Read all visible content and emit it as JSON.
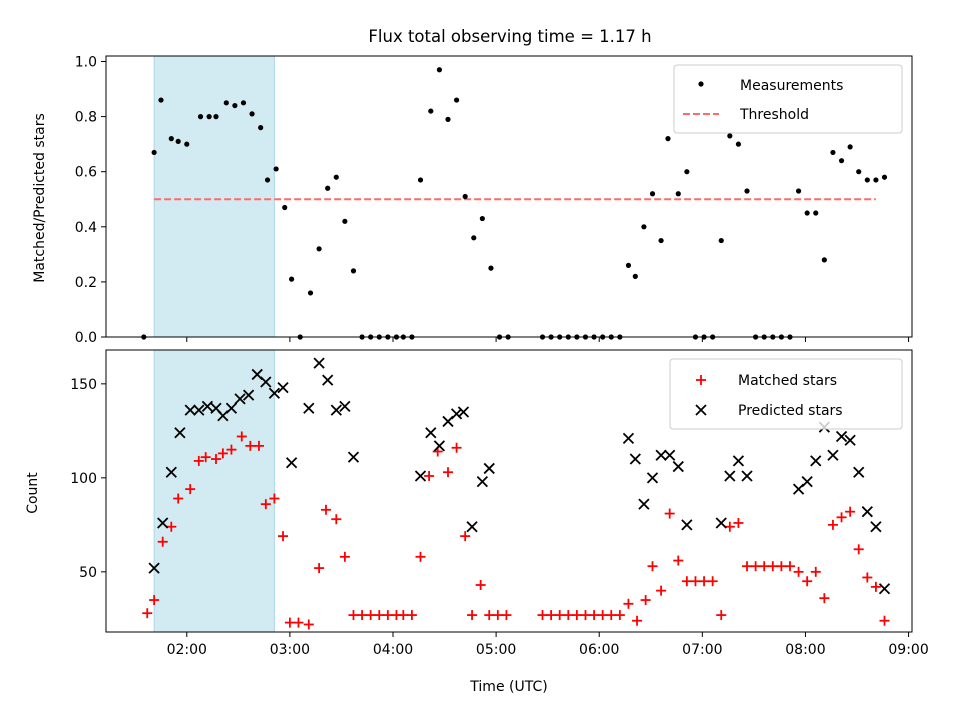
{
  "title": "Flux total observing time = 1.17 h",
  "colors": {
    "shade": "#add8e6",
    "measurement": "#000000",
    "threshold": "#ff6b6b",
    "matched": "#ff0000",
    "predicted": "#000000"
  },
  "chart_data": [
    {
      "type": "scatter",
      "ylabel": "Matched/Predicted stars",
      "ylim": [
        0,
        1.0
      ],
      "yticks": [
        "0.0",
        "0.2",
        "0.4",
        "0.6",
        "0.8",
        "1.0"
      ],
      "grid": false,
      "legend_position": "upper right",
      "shaded_interval": [
        "01:41",
        "02:51"
      ],
      "threshold": {
        "name": "Threshold",
        "value": 0.5,
        "x_range": [
          "01:41",
          "08:41"
        ]
      },
      "series": [
        {
          "name": "Measurements",
          "points": [
            {
              "x": "01:35",
              "y": 0.0
            },
            {
              "x": "01:41",
              "y": 0.67
            },
            {
              "x": "01:45",
              "y": 0.86
            },
            {
              "x": "01:51",
              "y": 0.72
            },
            {
              "x": "01:55",
              "y": 0.71
            },
            {
              "x": "02:00",
              "y": 0.7
            },
            {
              "x": "02:08",
              "y": 0.8
            },
            {
              "x": "02:13",
              "y": 0.8
            },
            {
              "x": "02:17",
              "y": 0.8
            },
            {
              "x": "02:23",
              "y": 0.85
            },
            {
              "x": "02:28",
              "y": 0.84
            },
            {
              "x": "02:33",
              "y": 0.85
            },
            {
              "x": "02:38",
              "y": 0.81
            },
            {
              "x": "02:43",
              "y": 0.76
            },
            {
              "x": "02:47",
              "y": 0.57
            },
            {
              "x": "02:52",
              "y": 0.61
            },
            {
              "x": "02:57",
              "y": 0.47
            },
            {
              "x": "03:01",
              "y": 0.21
            },
            {
              "x": "03:06",
              "y": 0.0
            },
            {
              "x": "03:12",
              "y": 0.16
            },
            {
              "x": "03:17",
              "y": 0.32
            },
            {
              "x": "03:22",
              "y": 0.54
            },
            {
              "x": "03:27",
              "y": 0.58
            },
            {
              "x": "03:32",
              "y": 0.42
            },
            {
              "x": "03:37",
              "y": 0.24
            },
            {
              "x": "03:42",
              "y": 0.0
            },
            {
              "x": "03:47",
              "y": 0.0
            },
            {
              "x": "03:52",
              "y": 0.0
            },
            {
              "x": "03:57",
              "y": 0.0
            },
            {
              "x": "04:02",
              "y": 0.0
            },
            {
              "x": "04:06",
              "y": 0.0
            },
            {
              "x": "04:11",
              "y": 0.0
            },
            {
              "x": "04:16",
              "y": 0.57
            },
            {
              "x": "04:22",
              "y": 0.82
            },
            {
              "x": "04:27",
              "y": 0.97
            },
            {
              "x": "04:32",
              "y": 0.79
            },
            {
              "x": "04:37",
              "y": 0.86
            },
            {
              "x": "04:42",
              "y": 0.51
            },
            {
              "x": "04:47",
              "y": 0.36
            },
            {
              "x": "04:52",
              "y": 0.43
            },
            {
              "x": "04:57",
              "y": 0.25
            },
            {
              "x": "05:02",
              "y": 0.0
            },
            {
              "x": "05:07",
              "y": 0.0
            },
            {
              "x": "05:27",
              "y": 0.0
            },
            {
              "x": "05:32",
              "y": 0.0
            },
            {
              "x": "05:37",
              "y": 0.0
            },
            {
              "x": "05:42",
              "y": 0.0
            },
            {
              "x": "05:47",
              "y": 0.0
            },
            {
              "x": "05:52",
              "y": 0.0
            },
            {
              "x": "05:57",
              "y": 0.0
            },
            {
              "x": "06:02",
              "y": 0.0
            },
            {
              "x": "06:07",
              "y": 0.0
            },
            {
              "x": "06:12",
              "y": 0.0
            },
            {
              "x": "06:17",
              "y": 0.26
            },
            {
              "x": "06:21",
              "y": 0.22
            },
            {
              "x": "06:26",
              "y": 0.4
            },
            {
              "x": "06:31",
              "y": 0.52
            },
            {
              "x": "06:36",
              "y": 0.35
            },
            {
              "x": "06:40",
              "y": 0.72
            },
            {
              "x": "06:46",
              "y": 0.52
            },
            {
              "x": "06:51",
              "y": 0.6
            },
            {
              "x": "06:56",
              "y": 0.0
            },
            {
              "x": "07:01",
              "y": 0.0
            },
            {
              "x": "07:06",
              "y": 0.0
            },
            {
              "x": "07:11",
              "y": 0.35
            },
            {
              "x": "07:16",
              "y": 0.73
            },
            {
              "x": "07:21",
              "y": 0.7
            },
            {
              "x": "07:26",
              "y": 0.53
            },
            {
              "x": "07:31",
              "y": 0.0
            },
            {
              "x": "07:36",
              "y": 0.0
            },
            {
              "x": "07:41",
              "y": 0.0
            },
            {
              "x": "07:46",
              "y": 0.0
            },
            {
              "x": "07:51",
              "y": 0.0
            },
            {
              "x": "07:56",
              "y": 0.53
            },
            {
              "x": "08:01",
              "y": 0.45
            },
            {
              "x": "08:06",
              "y": 0.45
            },
            {
              "x": "08:11",
              "y": 0.28
            },
            {
              "x": "08:16",
              "y": 0.67
            },
            {
              "x": "08:21",
              "y": 0.64
            },
            {
              "x": "08:26",
              "y": 0.69
            },
            {
              "x": "08:31",
              "y": 0.6
            },
            {
              "x": "08:36",
              "y": 0.57
            },
            {
              "x": "08:41",
              "y": 0.57
            },
            {
              "x": "08:46",
              "y": 0.58
            }
          ]
        }
      ]
    },
    {
      "type": "scatter",
      "xlabel": "Time (UTC)",
      "ylabel": "Count",
      "ylim": [
        18,
        168
      ],
      "yticks": [
        "50",
        "100",
        "150"
      ],
      "xticks": [
        "02:00",
        "03:00",
        "04:00",
        "05:00",
        "06:00",
        "07:00",
        "08:00",
        "09:00"
      ],
      "xlim": [
        "01:13",
        "09:02"
      ],
      "grid": false,
      "legend_position": "upper right",
      "shaded_interval": [
        "01:41",
        "02:51"
      ],
      "series": [
        {
          "name": "Matched stars",
          "marker": "+",
          "points": [
            {
              "x": "01:37",
              "y": 28
            },
            {
              "x": "01:41",
              "y": 35
            },
            {
              "x": "01:46",
              "y": 66
            },
            {
              "x": "01:51",
              "y": 74
            },
            {
              "x": "01:55",
              "y": 89
            },
            {
              "x": "02:02",
              "y": 94
            },
            {
              "x": "02:07",
              "y": 109
            },
            {
              "x": "02:11",
              "y": 111
            },
            {
              "x": "02:17",
              "y": 110
            },
            {
              "x": "02:21",
              "y": 113
            },
            {
              "x": "02:26",
              "y": 115
            },
            {
              "x": "02:32",
              "y": 122
            },
            {
              "x": "02:37",
              "y": 117
            },
            {
              "x": "02:42",
              "y": 117
            },
            {
              "x": "02:46",
              "y": 86
            },
            {
              "x": "02:51",
              "y": 89
            },
            {
              "x": "02:56",
              "y": 69
            },
            {
              "x": "03:00",
              "y": 23
            },
            {
              "x": "03:05",
              "y": 23
            },
            {
              "x": "03:11",
              "y": 22
            },
            {
              "x": "03:17",
              "y": 52
            },
            {
              "x": "03:21",
              "y": 83
            },
            {
              "x": "03:27",
              "y": 78
            },
            {
              "x": "03:32",
              "y": 58
            },
            {
              "x": "03:37",
              "y": 27
            },
            {
              "x": "03:42",
              "y": 27
            },
            {
              "x": "03:47",
              "y": 27
            },
            {
              "x": "03:52",
              "y": 27
            },
            {
              "x": "03:57",
              "y": 27
            },
            {
              "x": "04:02",
              "y": 27
            },
            {
              "x": "04:06",
              "y": 27
            },
            {
              "x": "04:11",
              "y": 27
            },
            {
              "x": "04:16",
              "y": 58
            },
            {
              "x": "04:21",
              "y": 101
            },
            {
              "x": "04:26",
              "y": 114
            },
            {
              "x": "04:32",
              "y": 103
            },
            {
              "x": "04:37",
              "y": 116
            },
            {
              "x": "04:42",
              "y": 69
            },
            {
              "x": "04:46",
              "y": 27
            },
            {
              "x": "04:51",
              "y": 43
            },
            {
              "x": "04:56",
              "y": 27
            },
            {
              "x": "05:01",
              "y": 27
            },
            {
              "x": "05:06",
              "y": 27
            },
            {
              "x": "05:27",
              "y": 27
            },
            {
              "x": "05:32",
              "y": 27
            },
            {
              "x": "05:37",
              "y": 27
            },
            {
              "x": "05:42",
              "y": 27
            },
            {
              "x": "05:47",
              "y": 27
            },
            {
              "x": "05:52",
              "y": 27
            },
            {
              "x": "05:57",
              "y": 27
            },
            {
              "x": "06:02",
              "y": 27
            },
            {
              "x": "06:07",
              "y": 27
            },
            {
              "x": "06:12",
              "y": 27
            },
            {
              "x": "06:17",
              "y": 33
            },
            {
              "x": "06:22",
              "y": 24
            },
            {
              "x": "06:27",
              "y": 35
            },
            {
              "x": "06:31",
              "y": 53
            },
            {
              "x": "06:36",
              "y": 40
            },
            {
              "x": "06:41",
              "y": 81
            },
            {
              "x": "06:46",
              "y": 56
            },
            {
              "x": "06:51",
              "y": 45
            },
            {
              "x": "06:56",
              "y": 45
            },
            {
              "x": "07:01",
              "y": 45
            },
            {
              "x": "07:06",
              "y": 45
            },
            {
              "x": "07:11",
              "y": 27
            },
            {
              "x": "07:16",
              "y": 74
            },
            {
              "x": "07:21",
              "y": 76
            },
            {
              "x": "07:26",
              "y": 53
            },
            {
              "x": "07:31",
              "y": 53
            },
            {
              "x": "07:36",
              "y": 53
            },
            {
              "x": "07:41",
              "y": 53
            },
            {
              "x": "07:46",
              "y": 53
            },
            {
              "x": "07:51",
              "y": 53
            },
            {
              "x": "07:56",
              "y": 50
            },
            {
              "x": "08:01",
              "y": 45
            },
            {
              "x": "08:06",
              "y": 50
            },
            {
              "x": "08:11",
              "y": 36
            },
            {
              "x": "08:16",
              "y": 75
            },
            {
              "x": "08:21",
              "y": 79
            },
            {
              "x": "08:26",
              "y": 82
            },
            {
              "x": "08:31",
              "y": 62
            },
            {
              "x": "08:36",
              "y": 47
            },
            {
              "x": "08:41",
              "y": 42
            },
            {
              "x": "08:46",
              "y": 24
            }
          ]
        },
        {
          "name": "Predicted stars",
          "marker": "x",
          "points": [
            {
              "x": "01:41",
              "y": 52
            },
            {
              "x": "01:46",
              "y": 76
            },
            {
              "x": "01:51",
              "y": 103
            },
            {
              "x": "01:56",
              "y": 124
            },
            {
              "x": "02:02",
              "y": 136
            },
            {
              "x": "02:07",
              "y": 136
            },
            {
              "x": "02:12",
              "y": 138
            },
            {
              "x": "02:17",
              "y": 137
            },
            {
              "x": "02:21",
              "y": 133
            },
            {
              "x": "02:26",
              "y": 137
            },
            {
              "x": "02:31",
              "y": 142
            },
            {
              "x": "02:36",
              "y": 144
            },
            {
              "x": "02:41",
              "y": 155
            },
            {
              "x": "02:46",
              "y": 151
            },
            {
              "x": "02:51",
              "y": 145
            },
            {
              "x": "02:56",
              "y": 148
            },
            {
              "x": "03:01",
              "y": 108
            },
            {
              "x": "03:11",
              "y": 137
            },
            {
              "x": "03:17",
              "y": 161
            },
            {
              "x": "03:22",
              "y": 152
            },
            {
              "x": "03:27",
              "y": 136
            },
            {
              "x": "03:32",
              "y": 138
            },
            {
              "x": "03:37",
              "y": 111
            },
            {
              "x": "04:16",
              "y": 101
            },
            {
              "x": "04:22",
              "y": 124
            },
            {
              "x": "04:27",
              "y": 117
            },
            {
              "x": "04:32",
              "y": 130
            },
            {
              "x": "04:37",
              "y": 134
            },
            {
              "x": "04:41",
              "y": 135
            },
            {
              "x": "04:46",
              "y": 74
            },
            {
              "x": "04:52",
              "y": 98
            },
            {
              "x": "04:56",
              "y": 105
            },
            {
              "x": "06:17",
              "y": 121
            },
            {
              "x": "06:21",
              "y": 110
            },
            {
              "x": "06:26",
              "y": 86
            },
            {
              "x": "06:31",
              "y": 100
            },
            {
              "x": "06:36",
              "y": 112
            },
            {
              "x": "06:41",
              "y": 112
            },
            {
              "x": "06:46",
              "y": 106
            },
            {
              "x": "06:51",
              "y": 75
            },
            {
              "x": "07:11",
              "y": 76
            },
            {
              "x": "07:16",
              "y": 101
            },
            {
              "x": "07:21",
              "y": 109
            },
            {
              "x": "07:26",
              "y": 101
            },
            {
              "x": "07:56",
              "y": 94
            },
            {
              "x": "08:01",
              "y": 98
            },
            {
              "x": "08:06",
              "y": 109
            },
            {
              "x": "08:11",
              "y": 127
            },
            {
              "x": "08:16",
              "y": 112
            },
            {
              "x": "08:21",
              "y": 122
            },
            {
              "x": "08:26",
              "y": 120
            },
            {
              "x": "08:31",
              "y": 103
            },
            {
              "x": "08:36",
              "y": 82
            },
            {
              "x": "08:41",
              "y": 74
            },
            {
              "x": "08:46",
              "y": 41
            }
          ]
        }
      ]
    }
  ]
}
